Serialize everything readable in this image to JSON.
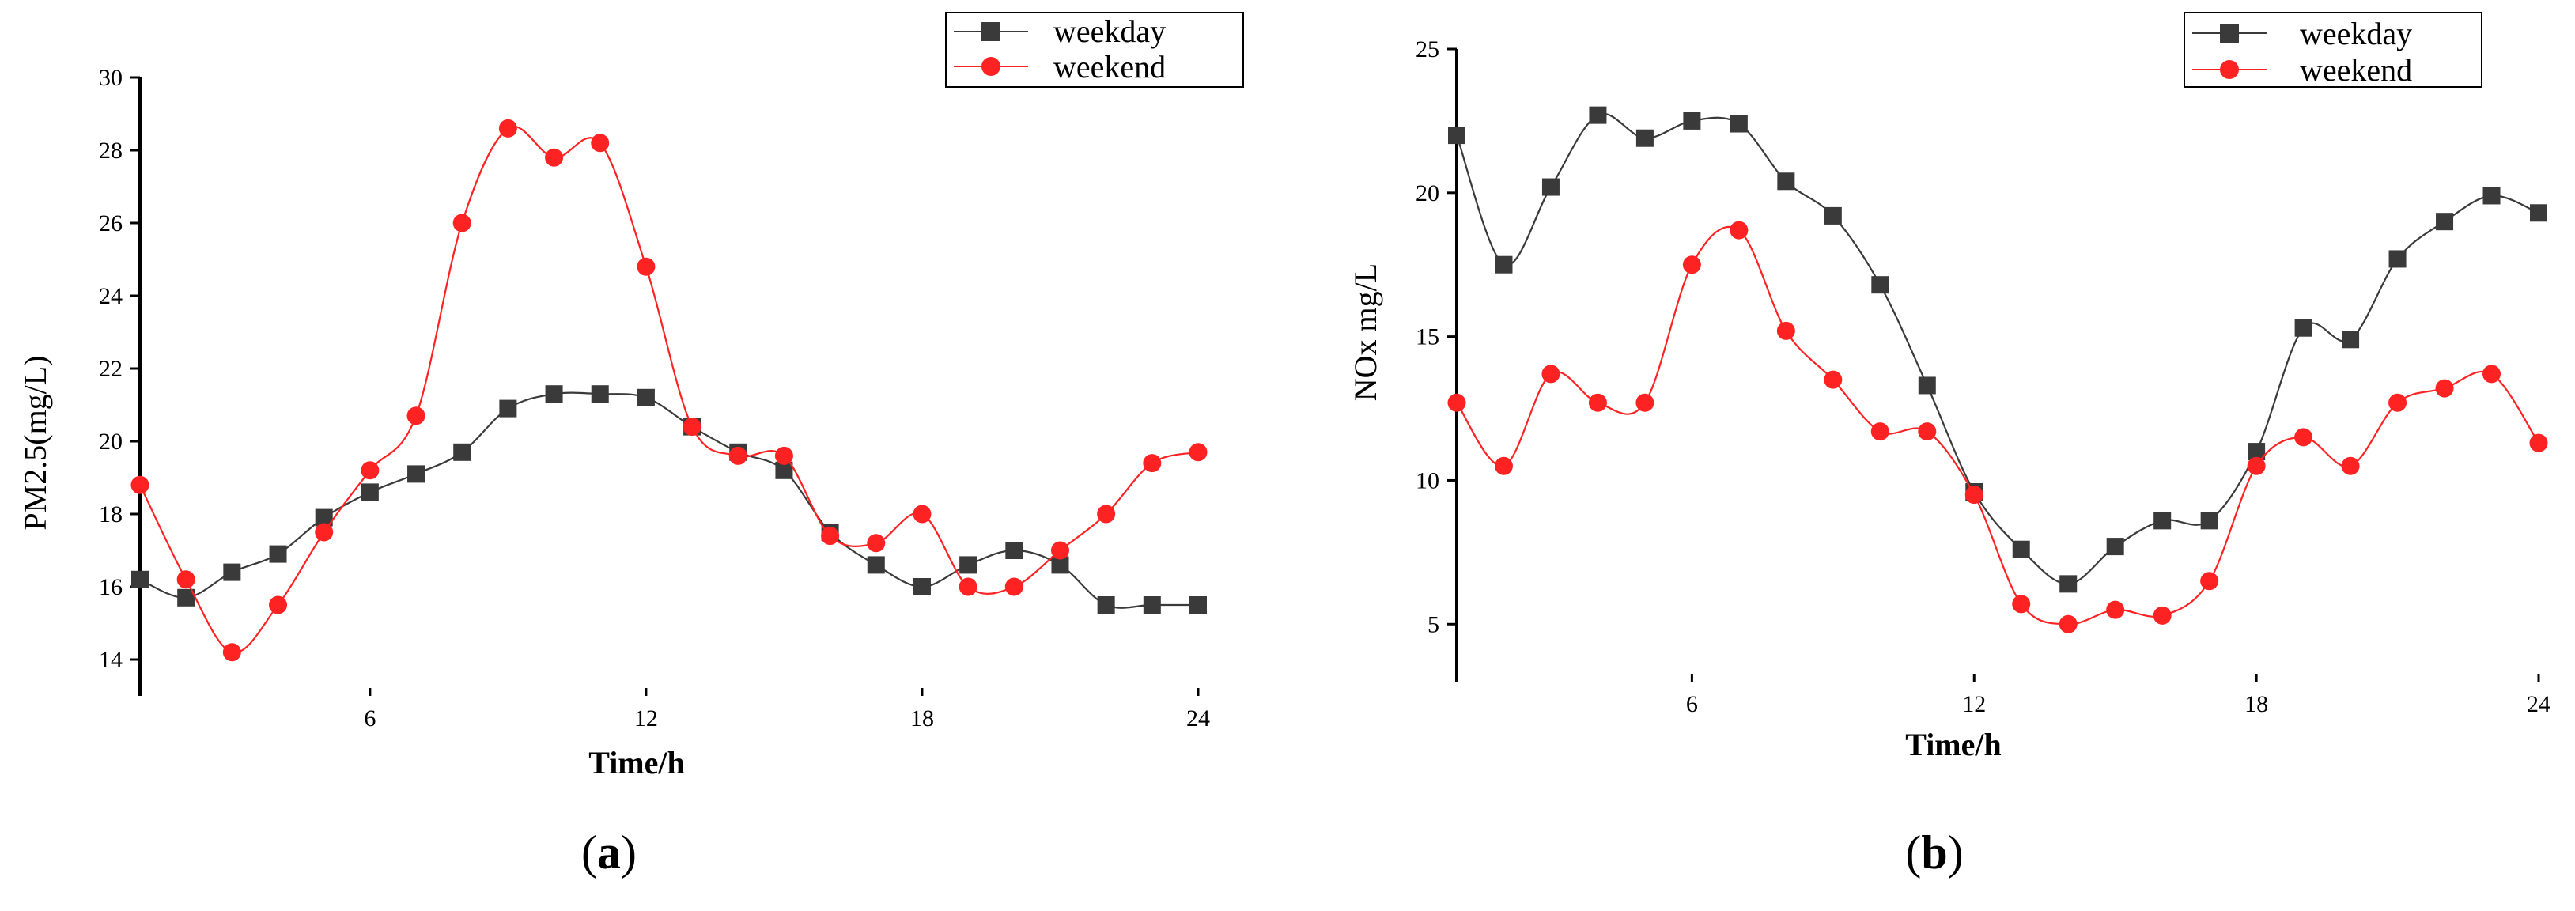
{
  "colors": {
    "weekday": "#3a3a3a",
    "weekend": "#ff2222"
  },
  "chart_data": [
    {
      "type": "line",
      "panel_label": "(a)",
      "panel_letter": "a",
      "xlabel": "Time/h",
      "ylabel": "PM2.5(mg/L)",
      "xlim": [
        1,
        24
      ],
      "ylim": [
        13,
        30
      ],
      "xticks": [
        6,
        12,
        18,
        24
      ],
      "yticks": [
        14,
        16,
        18,
        20,
        22,
        24,
        26,
        28,
        30
      ],
      "x": [
        1,
        2,
        3,
        4,
        5,
        6,
        7,
        8,
        9,
        10,
        11,
        12,
        13,
        14,
        15,
        16,
        17,
        18,
        19,
        20,
        21,
        22,
        23,
        24
      ],
      "series": [
        {
          "name": "weekday",
          "marker": "square",
          "values": [
            16.2,
            15.7,
            16.4,
            16.9,
            17.9,
            18.6,
            19.1,
            19.7,
            20.9,
            21.3,
            21.3,
            21.2,
            20.4,
            19.7,
            19.2,
            17.5,
            16.6,
            16.0,
            16.6,
            17.0,
            16.6,
            15.5,
            15.5,
            15.5
          ]
        },
        {
          "name": "weekend",
          "marker": "circle",
          "values": [
            18.8,
            16.2,
            14.2,
            15.5,
            17.5,
            19.2,
            20.7,
            26.0,
            28.6,
            27.8,
            28.2,
            24.8,
            20.4,
            19.6,
            19.6,
            17.4,
            17.2,
            18.0,
            16.0,
            16.0,
            17.0,
            18.0,
            19.4,
            19.7
          ]
        }
      ]
    },
    {
      "type": "line",
      "panel_label": "(b)",
      "panel_letter": "b",
      "xlabel": "Time/h",
      "ylabel": "NOx mg/L",
      "xlim": [
        1,
        24
      ],
      "ylim": [
        3,
        25
      ],
      "xticks": [
        6,
        12,
        18,
        24
      ],
      "yticks": [
        5,
        10,
        15,
        20,
        25
      ],
      "x": [
        1,
        2,
        3,
        4,
        5,
        6,
        7,
        8,
        9,
        10,
        11,
        12,
        13,
        14,
        15,
        16,
        17,
        18,
        19,
        20,
        21,
        22,
        23,
        24
      ],
      "series": [
        {
          "name": "weekday",
          "marker": "square",
          "values": [
            22.0,
            17.5,
            20.2,
            22.7,
            21.9,
            22.5,
            22.4,
            20.4,
            19.2,
            16.8,
            13.3,
            9.6,
            7.6,
            6.4,
            7.7,
            8.6,
            8.6,
            11.0,
            15.3,
            14.9,
            17.7,
            19.0,
            19.9,
            19.3
          ]
        },
        {
          "name": "weekend",
          "marker": "circle",
          "values": [
            12.7,
            10.5,
            13.7,
            12.7,
            12.7,
            17.5,
            18.7,
            15.2,
            13.5,
            11.7,
            11.7,
            9.5,
            5.7,
            5.0,
            5.5,
            5.3,
            6.5,
            10.5,
            11.5,
            10.5,
            12.7,
            13.2,
            13.7,
            11.3
          ]
        }
      ]
    }
  ]
}
